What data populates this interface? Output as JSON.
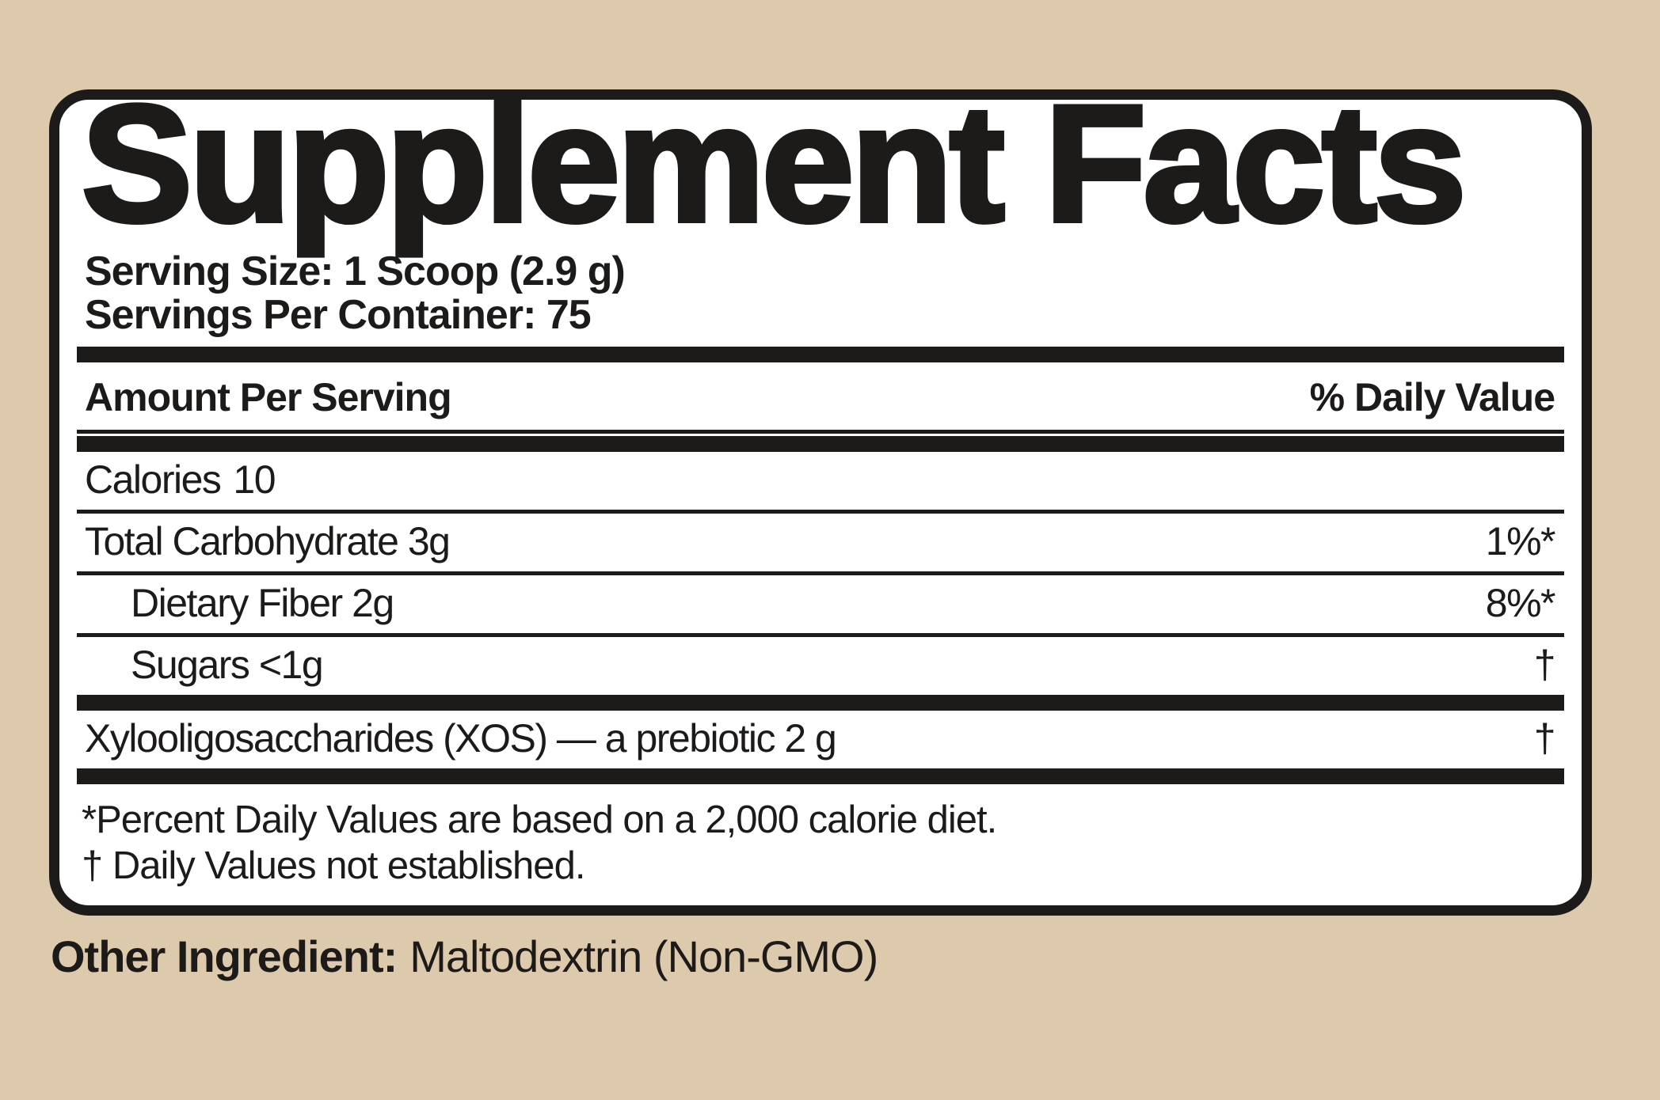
{
  "colors": {
    "background": "#ddc9ab",
    "ink": "#1d1b1a",
    "panel_bg": "#ffffff"
  },
  "label": {
    "title": "Supplement Facts",
    "serving_size": "Serving Size: 1 Scoop (2.9 g)",
    "servings_per_container": "Servings Per Container: 75",
    "columns": {
      "amount": "Amount Per Serving",
      "daily_value": "% Daily Value"
    },
    "rows": [
      {
        "name": "Calories",
        "amount": "10",
        "daily_value": ""
      },
      {
        "name": "Total Carbohydrate 3g",
        "daily_value": "1%*"
      },
      {
        "name": "Dietary Fiber 2g",
        "daily_value": "8%*",
        "indent": true
      },
      {
        "name": "Sugars <1g",
        "daily_value": "†",
        "indent": true
      },
      {
        "name": "Xylooligosaccharides (XOS) — a prebiotic 2 g",
        "daily_value": "†"
      }
    ],
    "footnotes": [
      "*Percent Daily Values are based on a 2,000 calorie diet.",
      "† Daily Values not established."
    ]
  },
  "other_ingredient": {
    "label": "Other Ingredient:",
    "value": "Maltodextrin (Non-GMO)"
  }
}
